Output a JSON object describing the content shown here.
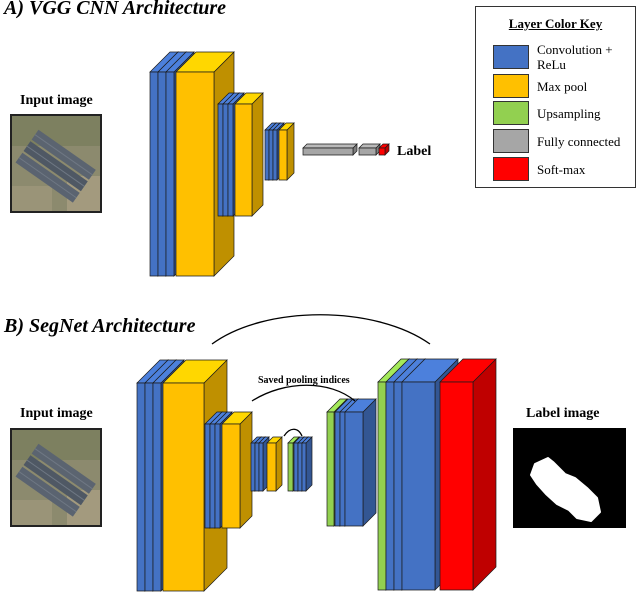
{
  "section_a": {
    "title": "A) VGG CNN Architecture",
    "input_label": "Input image",
    "output_label": "Label"
  },
  "section_b": {
    "title": "B) SegNet Architecture",
    "input_label": "Input image",
    "output_label": "Label image",
    "skip_annotation": "Saved pooling indices"
  },
  "legend": {
    "title": "Layer Color Key",
    "items": [
      {
        "key": "conv",
        "label": "Convolution + ReLu",
        "color": "#4472c4"
      },
      {
        "key": "pool",
        "label": "Max pool",
        "color": "#ffc000"
      },
      {
        "key": "up",
        "label": "Upsampling",
        "color": "#92d050"
      },
      {
        "key": "fc",
        "label": "Fully connected",
        "color": "#a6a6a6"
      },
      {
        "key": "softmax",
        "label": "Soft-max",
        "color": "#ff0000"
      }
    ]
  },
  "colors": {
    "conv": "#4472c4",
    "pool": "#ffc000",
    "up": "#92d050",
    "fc": "#a6a6a6",
    "softmax": "#ff0000"
  }
}
